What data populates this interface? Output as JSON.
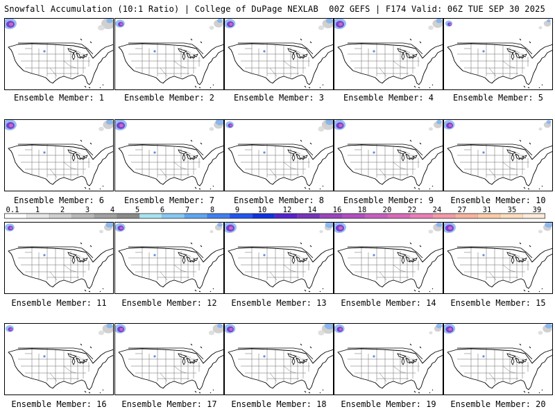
{
  "header": {
    "title": "Snowfall Accumulation (10:1 Ratio) | College of DuPage NEXLAB",
    "run_info": "00Z GEFS | F174 Valid: 06Z TUE SEP 30 2025"
  },
  "panels": [
    {
      "label": "Ensemble Member: 1"
    },
    {
      "label": "Ensemble Member: 2"
    },
    {
      "label": "Ensemble Member: 3"
    },
    {
      "label": "Ensemble Member: 4"
    },
    {
      "label": "Ensemble Member: 5"
    },
    {
      "label": "Ensemble Member: 6"
    },
    {
      "label": "Ensemble Member: 7"
    },
    {
      "label": "Ensemble Member: 8"
    },
    {
      "label": "Ensemble Member: 9"
    },
    {
      "label": "Ensemble Member: 10"
    },
    {
      "label": "Ensemble Member: 11"
    },
    {
      "label": "Ensemble Member: 12"
    },
    {
      "label": "Ensemble Member: 13"
    },
    {
      "label": "Ensemble Member: 14"
    },
    {
      "label": "Ensemble Member: 15"
    },
    {
      "label": "Ensemble Member: 16"
    },
    {
      "label": "Ensemble Member: 17"
    },
    {
      "label": "Ensemble Member: 18"
    },
    {
      "label": "Ensemble Member: 19"
    },
    {
      "label": "Ensemble Member: 20"
    }
  ],
  "color_scale": {
    "labels": [
      "0.1",
      "1",
      "2",
      "3",
      "4",
      "5",
      "6",
      "7",
      "8",
      "9",
      "10",
      "12",
      "14",
      "16",
      "18",
      "20",
      "22",
      "24",
      "27",
      "31",
      "35",
      "39"
    ],
    "colors": [
      "#ffffff",
      "#e6e6e6",
      "#cfcfcf",
      "#b8b8b8",
      "#a0a0a0",
      "#8a8a8a",
      "#a9e1ef",
      "#87c7f0",
      "#5fa5ee",
      "#3f7fee",
      "#2255ee",
      "#1133dd",
      "#5522cc",
      "#7733bb",
      "#9944bb",
      "#b04fbf",
      "#c65dbf",
      "#d86ab8",
      "#e87fb5",
      "#f29aa8",
      "#f6b3a0",
      "#f9cba6",
      "#fbdcbd",
      "#fdeadb"
    ]
  },
  "colors": {
    "map_line": "#000000",
    "state_line": "#666666",
    "panel_border": "#000000"
  }
}
